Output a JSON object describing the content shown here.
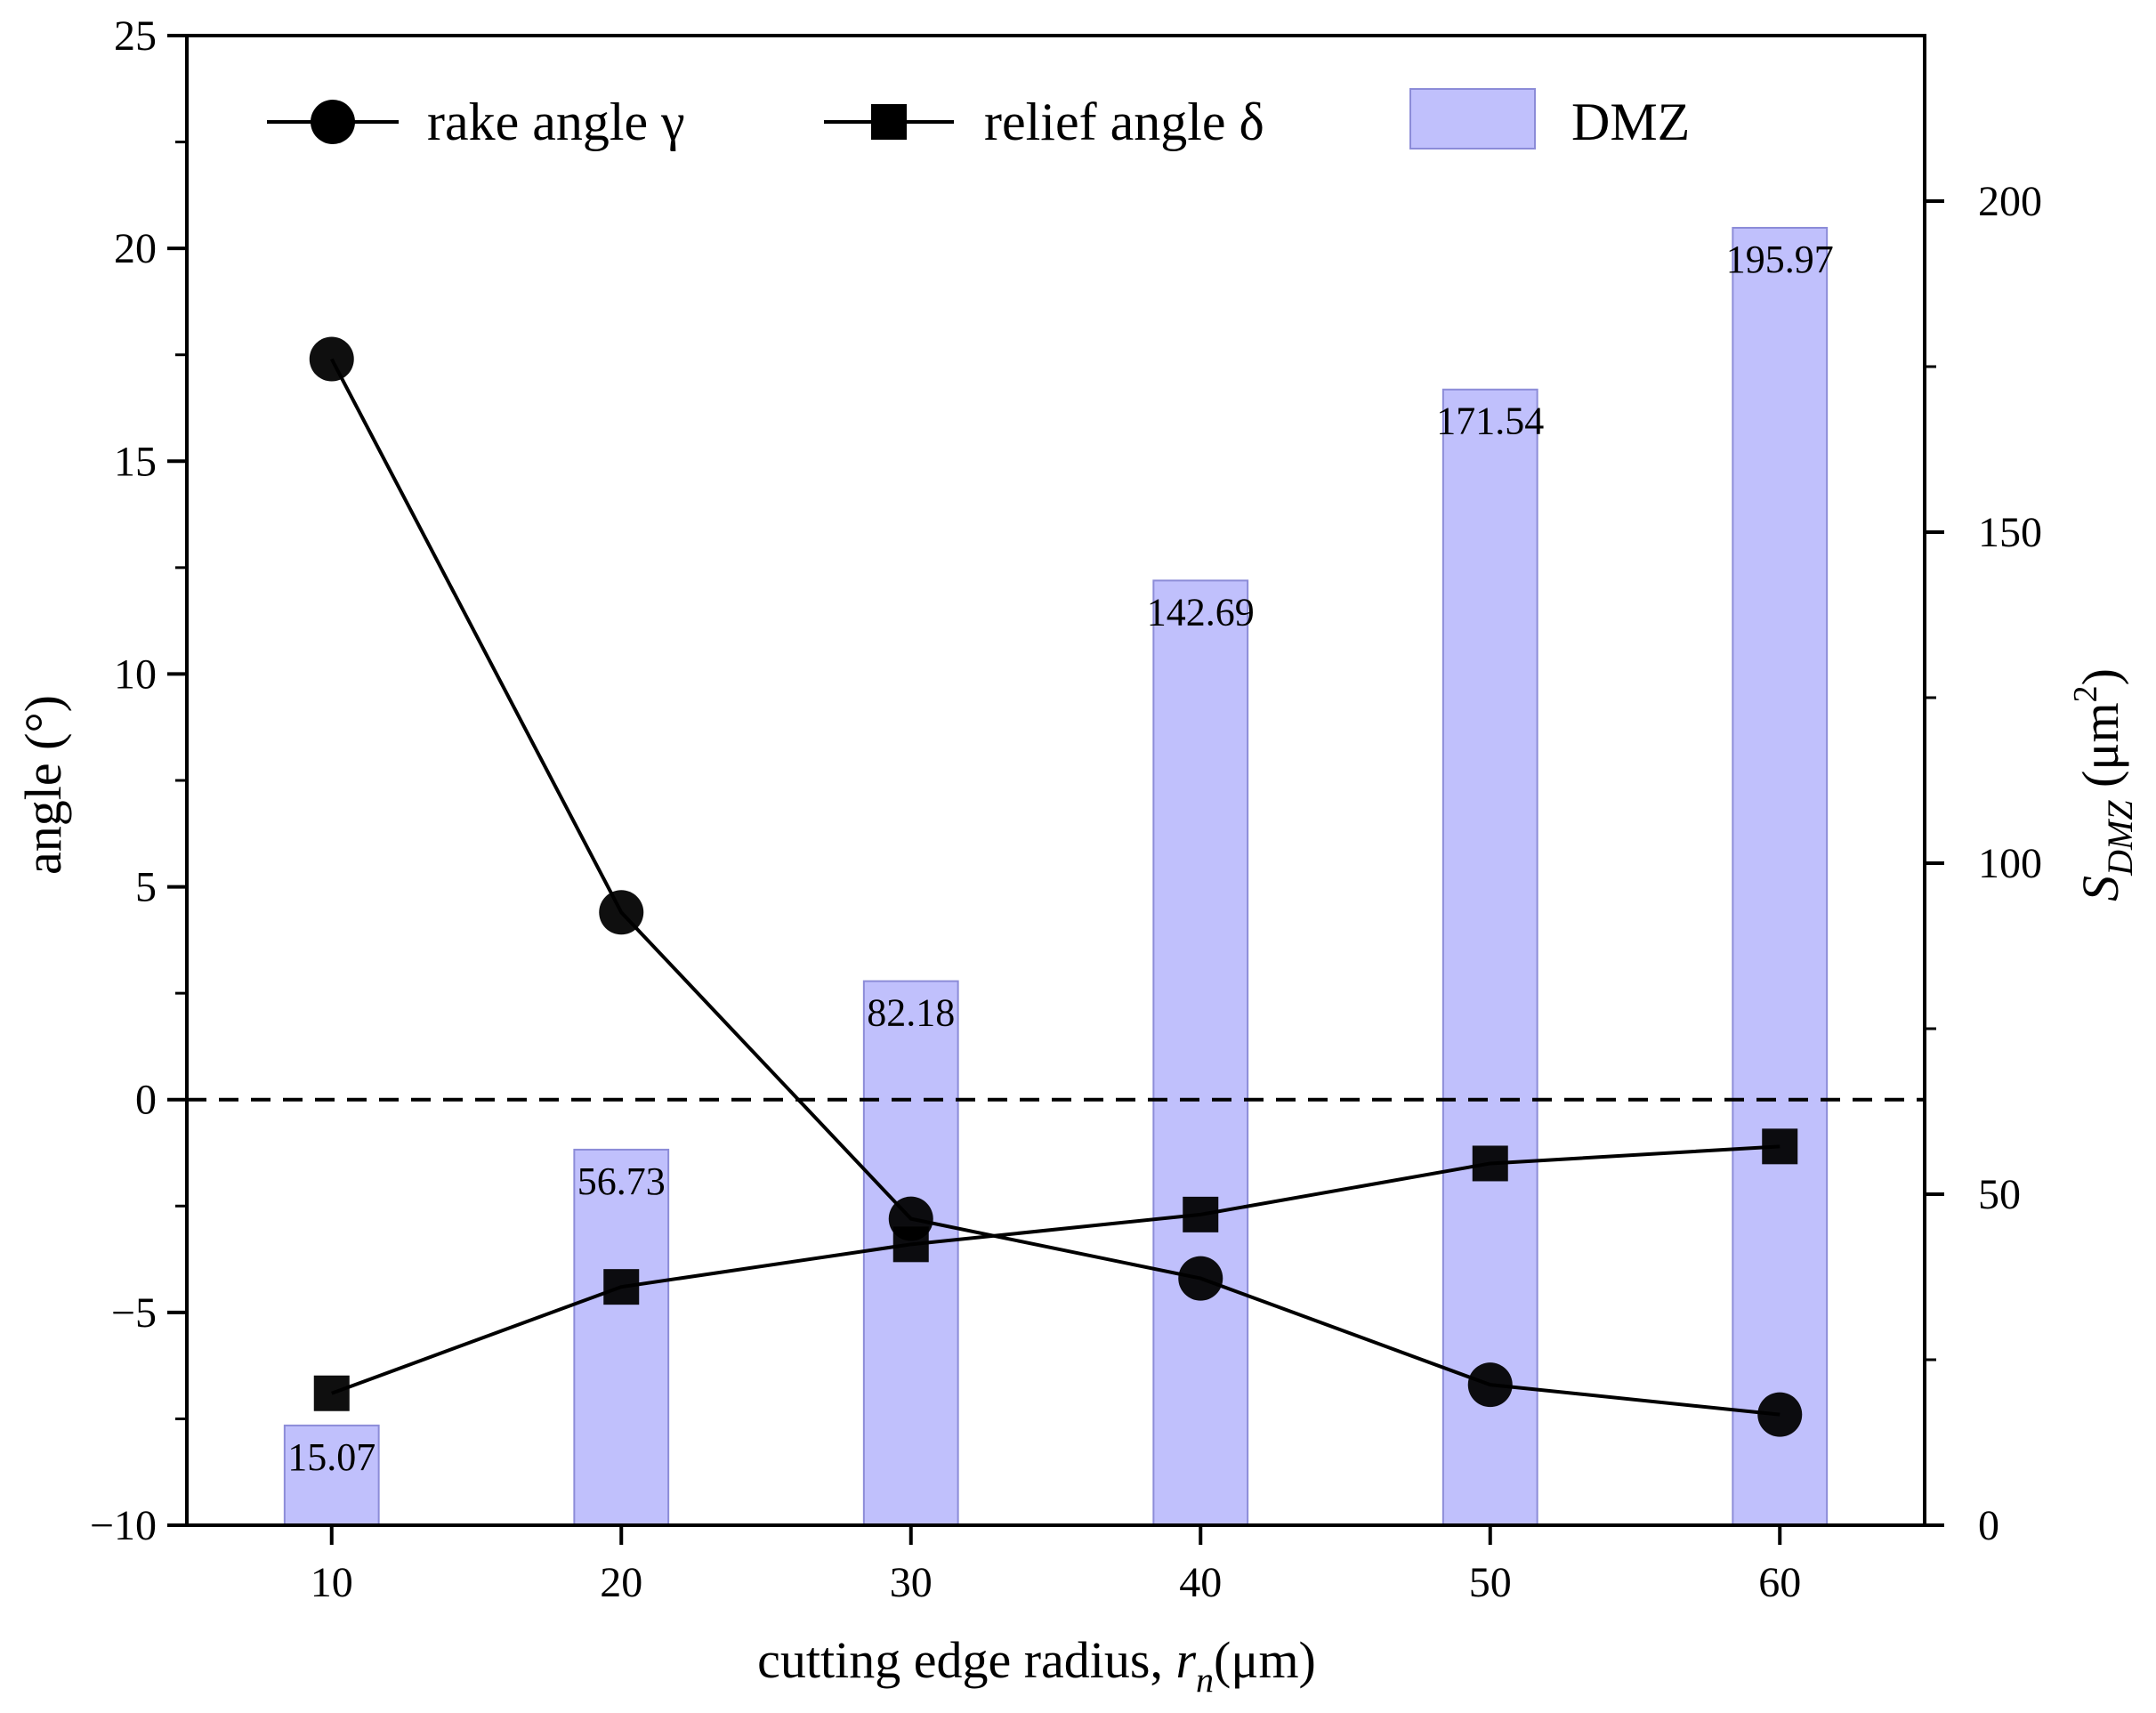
{
  "chart_data": {
    "type": "bar+line",
    "x": [
      10,
      20,
      30,
      40,
      50,
      60
    ],
    "xlabel_main": "cutting edge radius, ",
    "xlabel_var": "r",
    "xlabel_sub": "n",
    "xlabel_unit": "(μm)",
    "ylabel_left": "angle  (°)",
    "ylabel_right_var": "S",
    "ylabel_right_sub": "DMZ",
    "ylabel_right_unit": " (μm",
    "ylabel_right_sup": "2",
    "ylabel_right_close": ")",
    "ylim_left": [
      -10,
      25
    ],
    "ylim_right": [
      0,
      225
    ],
    "xlim": [
      5,
      65
    ],
    "yticks_left": [
      -10,
      -5,
      0,
      5,
      10,
      15,
      20,
      25
    ],
    "yticks_right": [
      0,
      50,
      100,
      150,
      200
    ],
    "xticks": [
      10,
      20,
      30,
      40,
      50,
      60
    ],
    "yticks_left_labels": [
      "−10",
      "−5",
      "0",
      "5",
      "10",
      "15",
      "20",
      "25"
    ],
    "yticks_right_labels": [
      "0",
      "50",
      "100",
      "150",
      "200"
    ],
    "xticks_labels": [
      "10",
      "20",
      "30",
      "40",
      "50",
      "60"
    ],
    "reference_line": {
      "y": 0,
      "style": "dashed"
    },
    "series": [
      {
        "name": "rake angle  γ",
        "type": "line",
        "marker": "circle",
        "axis": "left",
        "values": [
          17.4,
          4.4,
          -2.8,
          -4.2,
          -6.7,
          -7.4
        ],
        "color": "#000000"
      },
      {
        "name": "relief angle  δ",
        "type": "line",
        "marker": "square",
        "axis": "left",
        "values": [
          -6.9,
          -4.4,
          -3.4,
          -2.7,
          -1.5,
          -1.1
        ],
        "color": "#000000"
      },
      {
        "name": "DMZ",
        "type": "bar",
        "axis": "right",
        "values": [
          15.07,
          56.73,
          82.18,
          142.69,
          171.54,
          195.97
        ],
        "labels": [
          "15.07",
          "56.73",
          "82.18",
          "142.69",
          "171.54",
          "195.97"
        ],
        "color": "#c0c0fc"
      }
    ],
    "legend": [
      {
        "label": "rake angle  γ",
        "marker": "circle"
      },
      {
        "label": "relief angle  δ",
        "marker": "square"
      },
      {
        "label": "DMZ",
        "marker": "bar"
      }
    ]
  }
}
